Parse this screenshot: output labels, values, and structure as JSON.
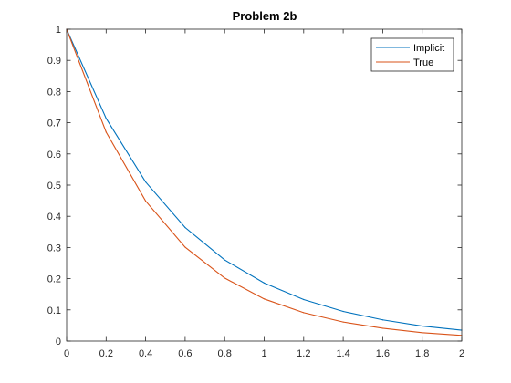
{
  "chart_data": {
    "type": "line",
    "title": "Problem 2b",
    "xlabel": "",
    "ylabel": "",
    "xlim": [
      0,
      2
    ],
    "ylim": [
      0,
      1
    ],
    "x_ticks": [
      0,
      0.2,
      0.4,
      0.6,
      0.8,
      1,
      1.2,
      1.4,
      1.6,
      1.8,
      2
    ],
    "y_ticks": [
      0,
      0.1,
      0.2,
      0.3,
      0.4,
      0.5,
      0.6,
      0.7,
      0.8,
      0.9,
      1
    ],
    "x_tick_labels": [
      "0",
      "0.2",
      "0.4",
      "0.6",
      "0.8",
      "1",
      "1.2",
      "1.4",
      "1.6",
      "1.8",
      "2"
    ],
    "y_tick_labels": [
      "0",
      "0.1",
      "0.2",
      "0.3",
      "0.4",
      "0.5",
      "0.6",
      "0.7",
      "0.8",
      "0.9",
      "1"
    ],
    "grid": false,
    "legend_position": "top-right",
    "x": [
      0,
      0.2,
      0.4,
      0.6,
      0.8,
      1,
      1.2,
      1.4,
      1.6,
      1.8,
      2
    ],
    "series": [
      {
        "name": "Implicit",
        "color": "#0072BD",
        "values": [
          1,
          0.714,
          0.51,
          0.364,
          0.26,
          0.186,
          0.133,
          0.095,
          0.068,
          0.048,
          0.035
        ]
      },
      {
        "name": "True",
        "color": "#D95319",
        "values": [
          1,
          0.67,
          0.449,
          0.301,
          0.202,
          0.135,
          0.091,
          0.061,
          0.041,
          0.027,
          0.018
        ]
      }
    ]
  }
}
